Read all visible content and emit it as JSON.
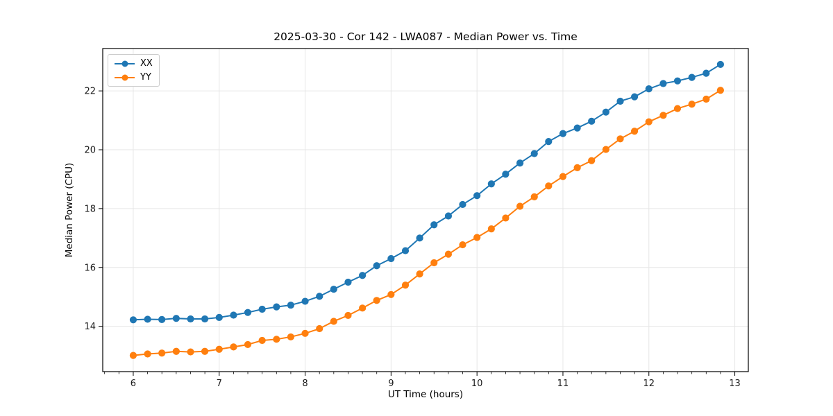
{
  "chart_data": {
    "type": "line",
    "title": "2025-03-30 - Cor 142 - LWA087 - Median Power vs. Time",
    "xlabel": "UT Time (hours)",
    "ylabel": "Median Power (CPU)",
    "grid": true,
    "legend_position": "upper left",
    "xlim": [
      5.645,
      13.157
    ],
    "ylim": [
      12.46,
      23.44
    ],
    "xticks": [
      6,
      7,
      8,
      9,
      10,
      11,
      12,
      13
    ],
    "yticks": [
      14,
      16,
      18,
      20,
      22
    ],
    "x_minor_step_per_hour": 6,
    "marker": "o",
    "x": [
      6.0,
      6.167,
      6.333,
      6.5,
      6.667,
      6.833,
      7.0,
      7.167,
      7.333,
      7.5,
      7.667,
      7.833,
      8.0,
      8.167,
      8.333,
      8.5,
      8.667,
      8.833,
      9.0,
      9.167,
      9.333,
      9.5,
      9.667,
      9.833,
      10.0,
      10.167,
      10.333,
      10.5,
      10.667,
      10.833,
      11.0,
      11.167,
      11.333,
      11.5,
      11.667,
      11.833,
      12.0,
      12.167,
      12.333,
      12.5,
      12.667,
      12.833
    ],
    "series": [
      {
        "name": "XX",
        "color": "#1f77b4",
        "values": [
          14.22,
          14.24,
          14.23,
          14.27,
          14.25,
          14.25,
          14.3,
          14.38,
          14.47,
          14.58,
          14.66,
          14.72,
          14.85,
          15.02,
          15.26,
          15.5,
          15.73,
          16.06,
          16.3,
          16.57,
          17.0,
          17.45,
          17.75,
          18.14,
          18.44,
          18.84,
          19.17,
          19.55,
          19.87,
          20.28,
          20.55,
          20.74,
          20.97,
          21.28,
          21.65,
          21.8,
          22.07,
          22.25,
          22.34,
          22.46,
          22.6,
          22.9
        ]
      },
      {
        "name": "YY",
        "color": "#ff7f0e",
        "values": [
          13.01,
          13.06,
          13.09,
          13.15,
          13.13,
          13.15,
          13.22,
          13.3,
          13.38,
          13.52,
          13.56,
          13.64,
          13.76,
          13.92,
          14.17,
          14.37,
          14.62,
          14.88,
          15.08,
          15.4,
          15.78,
          16.16,
          16.45,
          16.77,
          17.02,
          17.31,
          17.68,
          18.08,
          18.4,
          18.77,
          19.09,
          19.39,
          19.63,
          20.01,
          20.37,
          20.63,
          20.95,
          21.17,
          21.4,
          21.55,
          21.72,
          22.02
        ]
      }
    ],
    "colors": {
      "grid": "#e6e6e6",
      "spine": "#000000",
      "tick_text": "#1a1a1a"
    }
  }
}
